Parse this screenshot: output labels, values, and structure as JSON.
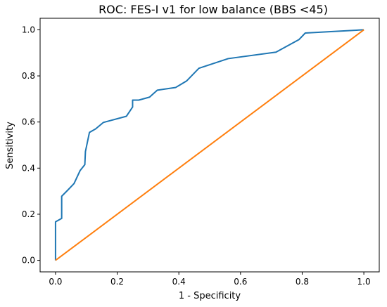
{
  "chart_data": {
    "type": "line",
    "title": "ROC: FES-I v1 for low balance (BBS <45)",
    "xlabel": "1 - Specificity",
    "ylabel": "Sensitivity",
    "xlim": [
      -0.05,
      1.05
    ],
    "ylim": [
      -0.05,
      1.05
    ],
    "xticks": [
      0.0,
      0.2,
      0.4,
      0.6,
      0.8,
      1.0
    ],
    "yticks": [
      0.0,
      0.2,
      0.4,
      0.6,
      0.8,
      1.0
    ],
    "xtick_labels": [
      "0.0",
      "0.2",
      "0.4",
      "0.6",
      "0.8",
      "1.0"
    ],
    "ytick_labels": [
      "0.0",
      "0.2",
      "0.4",
      "0.6",
      "0.8",
      "1.0"
    ],
    "grid": false,
    "legend": "none",
    "series": [
      {
        "color": "#1f77b4",
        "x": [
          0.0,
          0.0,
          0.02,
          0.02,
          0.04,
          0.06,
          0.08,
          0.095,
          0.097,
          0.11,
          0.13,
          0.155,
          0.23,
          0.25,
          0.25,
          0.27,
          0.305,
          0.33,
          0.39,
          0.425,
          0.465,
          0.56,
          0.715,
          0.79,
          0.81,
          1.0
        ],
        "y": [
          0.0,
          0.167,
          0.182,
          0.278,
          0.305,
          0.333,
          0.39,
          0.415,
          0.472,
          0.555,
          0.57,
          0.598,
          0.625,
          0.665,
          0.695,
          0.695,
          0.708,
          0.738,
          0.75,
          0.778,
          0.833,
          0.875,
          0.903,
          0.958,
          0.986,
          1.0
        ]
      },
      {
        "color": "#ff7f0e",
        "x": [
          0.0,
          1.0
        ],
        "y": [
          0.0,
          1.0
        ]
      }
    ]
  }
}
